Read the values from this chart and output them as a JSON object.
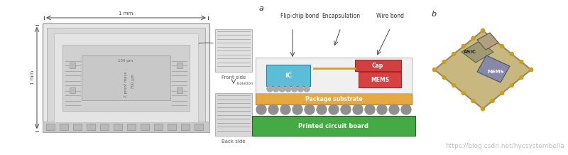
{
  "bg_color": "#ffffff",
  "fig_width": 8.0,
  "fig_height": 2.18,
  "dpi": 100,
  "watermark_text": "https://blog.csdn.net/hycsystembella",
  "watermark_color": "#c0c0c0",
  "watermark_fontsize": 6.5,
  "label_a": "a",
  "label_b": "b",
  "label_fontsize": 8,
  "diag_encap_text": "Encapsulation",
  "diag_flip_text": "Flip-chip bond",
  "diag_wire_text": "Wire bond",
  "diag_ic_text": "IC",
  "diag_cap_text": "Cap",
  "diag_mems_text": "MEMS",
  "diag_pkg_text": "Package substrate",
  "diag_pcb_text": "Printed circuit board",
  "color_ic": "#5bbdd8",
  "color_mems": "#d94040",
  "color_cap": "#d04040",
  "color_pkg": "#e8a840",
  "color_pcb": "#44aa44",
  "color_bump": "#909090",
  "color_encap_box": "#f0f0f0",
  "color_encap_border": "#cccccc",
  "color_wire": "#d4a020",
  "right_asic_text": "ASIC",
  "right_mems_text": "MEMS",
  "right_chip_color": "#c8b880",
  "right_die_color": "#8888aa"
}
